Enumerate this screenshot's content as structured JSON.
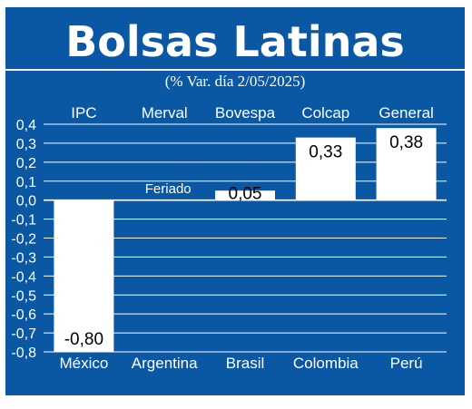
{
  "header": {
    "title": "Bolsas Latinas",
    "subtitle": "(% Var. día 2/05/2025)"
  },
  "colors": {
    "background": "#0a57a4",
    "bars": "#ffffff",
    "gridlines": "#ffffff",
    "text": "#ffffff",
    "data_label_text": "#000000"
  },
  "chart_data": {
    "type": "bar",
    "title": "Bolsas Latinas",
    "subtitle": "(% Var. día 2/05/2025)",
    "indices": [
      "IPC",
      "Merval",
      "Bovespa",
      "Colcap",
      "General"
    ],
    "categories": [
      "México",
      "Argentina",
      "Brasil",
      "Colombia",
      "Perú"
    ],
    "values": [
      -0.8,
      null,
      0.05,
      0.33,
      0.38
    ],
    "data_labels": [
      "-0,80",
      "",
      "0,05",
      "0,33",
      "0,38"
    ],
    "annotations": [
      {
        "category": "Argentina",
        "text": "Feriado"
      }
    ],
    "yticks": [
      0.4,
      0.3,
      0.2,
      0.1,
      0.0,
      -0.1,
      -0.2,
      -0.3,
      -0.4,
      -0.5,
      -0.6,
      -0.7,
      -0.8
    ],
    "ytick_labels": [
      "0,4",
      "0,3",
      "0,2",
      "0,1",
      "0,0",
      "-0,1",
      "-0,2",
      "-0,3",
      "-0,4",
      "-0,5",
      "-0,6",
      "-0,7",
      "-0,8"
    ],
    "ylim": [
      -0.8,
      0.4
    ],
    "grid": true,
    "legend": "none"
  }
}
